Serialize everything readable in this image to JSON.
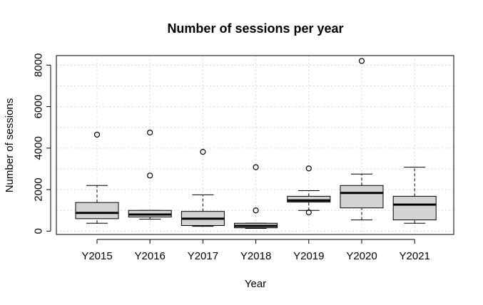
{
  "chart_data": {
    "type": "boxplot",
    "title": "Number of sessions per year",
    "xlabel": "Year",
    "ylabel": "Number of sessions",
    "categories": [
      "Y2015",
      "Y2016",
      "Y2017",
      "Y2018",
      "Y2019",
      "Y2020",
      "Y2021"
    ],
    "boxes": [
      {
        "category": "Y2015",
        "whisker_low": 380,
        "q1": 600,
        "median": 880,
        "q3": 1380,
        "whisker_high": 2200,
        "outliers": [
          4650
        ]
      },
      {
        "category": "Y2016",
        "whisker_low": 580,
        "q1": 680,
        "median": 800,
        "q3": 1000,
        "whisker_high": 1000,
        "outliers": [
          4750,
          2680
        ]
      },
      {
        "category": "Y2017",
        "whisker_low": 230,
        "q1": 270,
        "median": 600,
        "q3": 950,
        "whisker_high": 1750,
        "outliers": [
          3820
        ]
      },
      {
        "category": "Y2018",
        "whisker_low": 130,
        "q1": 160,
        "median": 250,
        "q3": 380,
        "whisker_high": 380,
        "outliers": [
          1000,
          3080
        ]
      },
      {
        "category": "Y2019",
        "whisker_low": 1000,
        "q1": 1400,
        "median": 1480,
        "q3": 1680,
        "whisker_high": 1950,
        "outliers": [
          900,
          3020
        ]
      },
      {
        "category": "Y2020",
        "whisker_low": 540,
        "q1": 1120,
        "median": 1840,
        "q3": 2200,
        "whisker_high": 2750,
        "outliers": [
          8200
        ]
      },
      {
        "category": "Y2021",
        "whisker_low": 380,
        "q1": 540,
        "median": 1280,
        "q3": 1680,
        "whisker_high": 3080,
        "outliers": []
      }
    ],
    "yticks": [
      0,
      2000,
      4000,
      6000,
      8000
    ],
    "ylim": [
      -160,
      8460
    ],
    "grid": true,
    "legend": "none",
    "colors": {
      "box_fill": "#d3d3d3",
      "stroke": "#000000",
      "grid": "#d9d9d9"
    }
  }
}
